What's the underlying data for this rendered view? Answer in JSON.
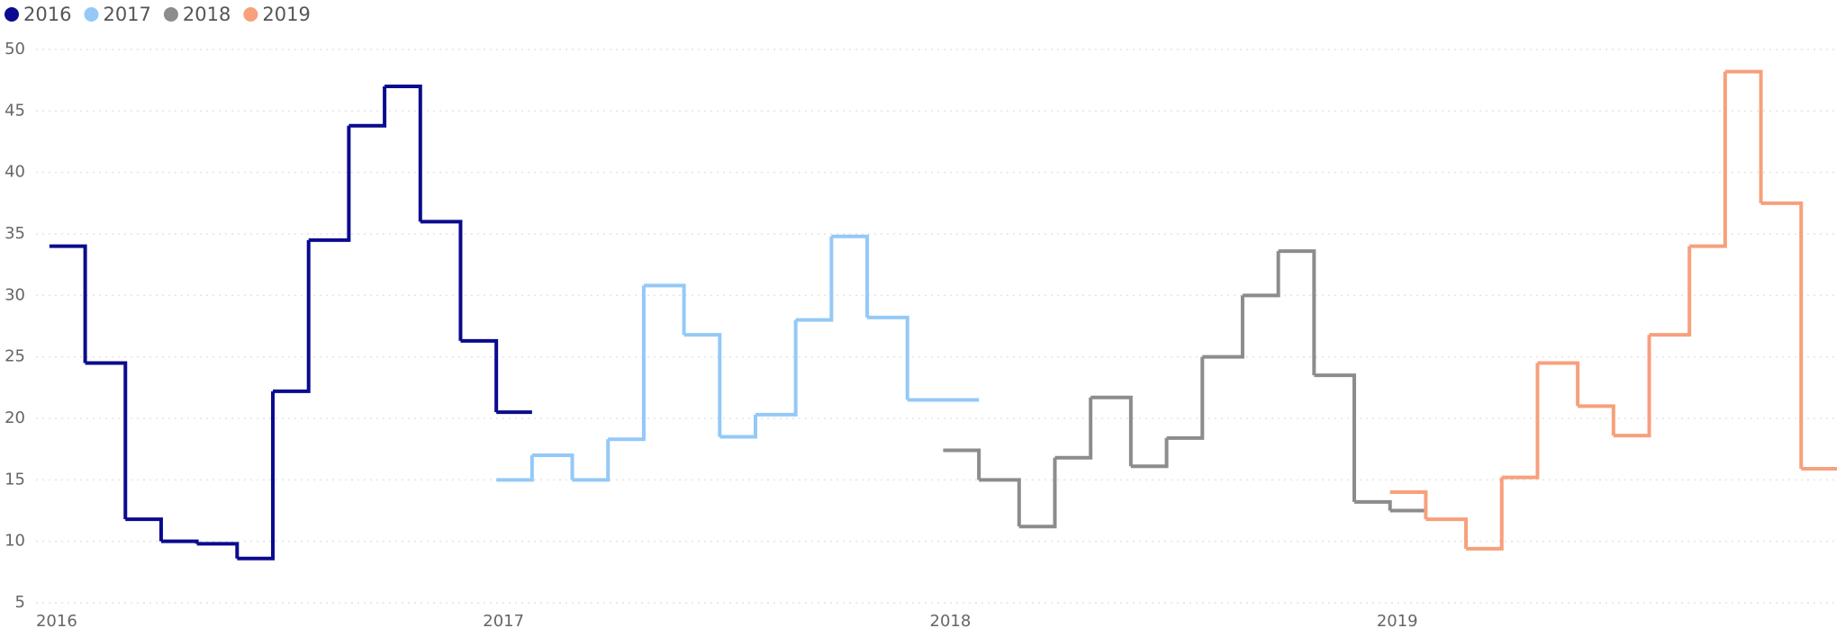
{
  "chart_data": {
    "type": "step",
    "xlim": [
      2015.97,
      2020
    ],
    "xticks": [
      2016,
      2017,
      2018,
      2019
    ],
    "ylim": [
      5,
      50
    ],
    "yticks": [
      5,
      10,
      15,
      20,
      25,
      30,
      35,
      40,
      45,
      50
    ],
    "grid": true,
    "legend": "top-left",
    "series": [
      {
        "name": "2016",
        "color": "#0b0b8f",
        "x": [
          2016,
          2016.08,
          2016.17,
          2016.25,
          2016.33,
          2016.42,
          2016.5,
          2016.58,
          2016.67,
          2016.75,
          2016.83,
          2016.92,
          2017
        ],
        "values": [
          34,
          24.5,
          11.8,
          10,
          9.8,
          8.6,
          22.2,
          34.5,
          43.8,
          47,
          36,
          26.3,
          20.5
        ]
      },
      {
        "name": "2017",
        "color": "#94c9f7",
        "x": [
          2017,
          2017.08,
          2017.17,
          2017.25,
          2017.33,
          2017.42,
          2017.5,
          2017.58,
          2017.67,
          2017.75,
          2017.83,
          2017.92,
          2018
        ],
        "values": [
          15,
          17,
          15,
          18.3,
          30.8,
          26.8,
          18.5,
          20.3,
          28,
          34.8,
          28.2,
          21.5,
          21.5
        ]
      },
      {
        "name": "2018",
        "color": "#8c8c8c",
        "x": [
          2018,
          2018.08,
          2018.17,
          2018.25,
          2018.33,
          2018.42,
          2018.5,
          2018.58,
          2018.67,
          2018.75,
          2018.83,
          2018.92,
          2019
        ],
        "values": [
          17.4,
          15,
          11.2,
          16.8,
          21.7,
          16.1,
          18.4,
          25,
          30,
          33.6,
          23.5,
          13.2,
          12.5
        ]
      },
      {
        "name": "2019",
        "color": "#f7a07c",
        "x": [
          2019,
          2019.08,
          2019.17,
          2019.25,
          2019.33,
          2019.42,
          2019.5,
          2019.58,
          2019.67,
          2019.75,
          2019.83,
          2019.92
        ],
        "values": [
          14,
          11.8,
          9.4,
          15.2,
          24.5,
          21,
          18.6,
          26.8,
          34,
          48.2,
          37.5,
          15.9
        ]
      }
    ]
  }
}
